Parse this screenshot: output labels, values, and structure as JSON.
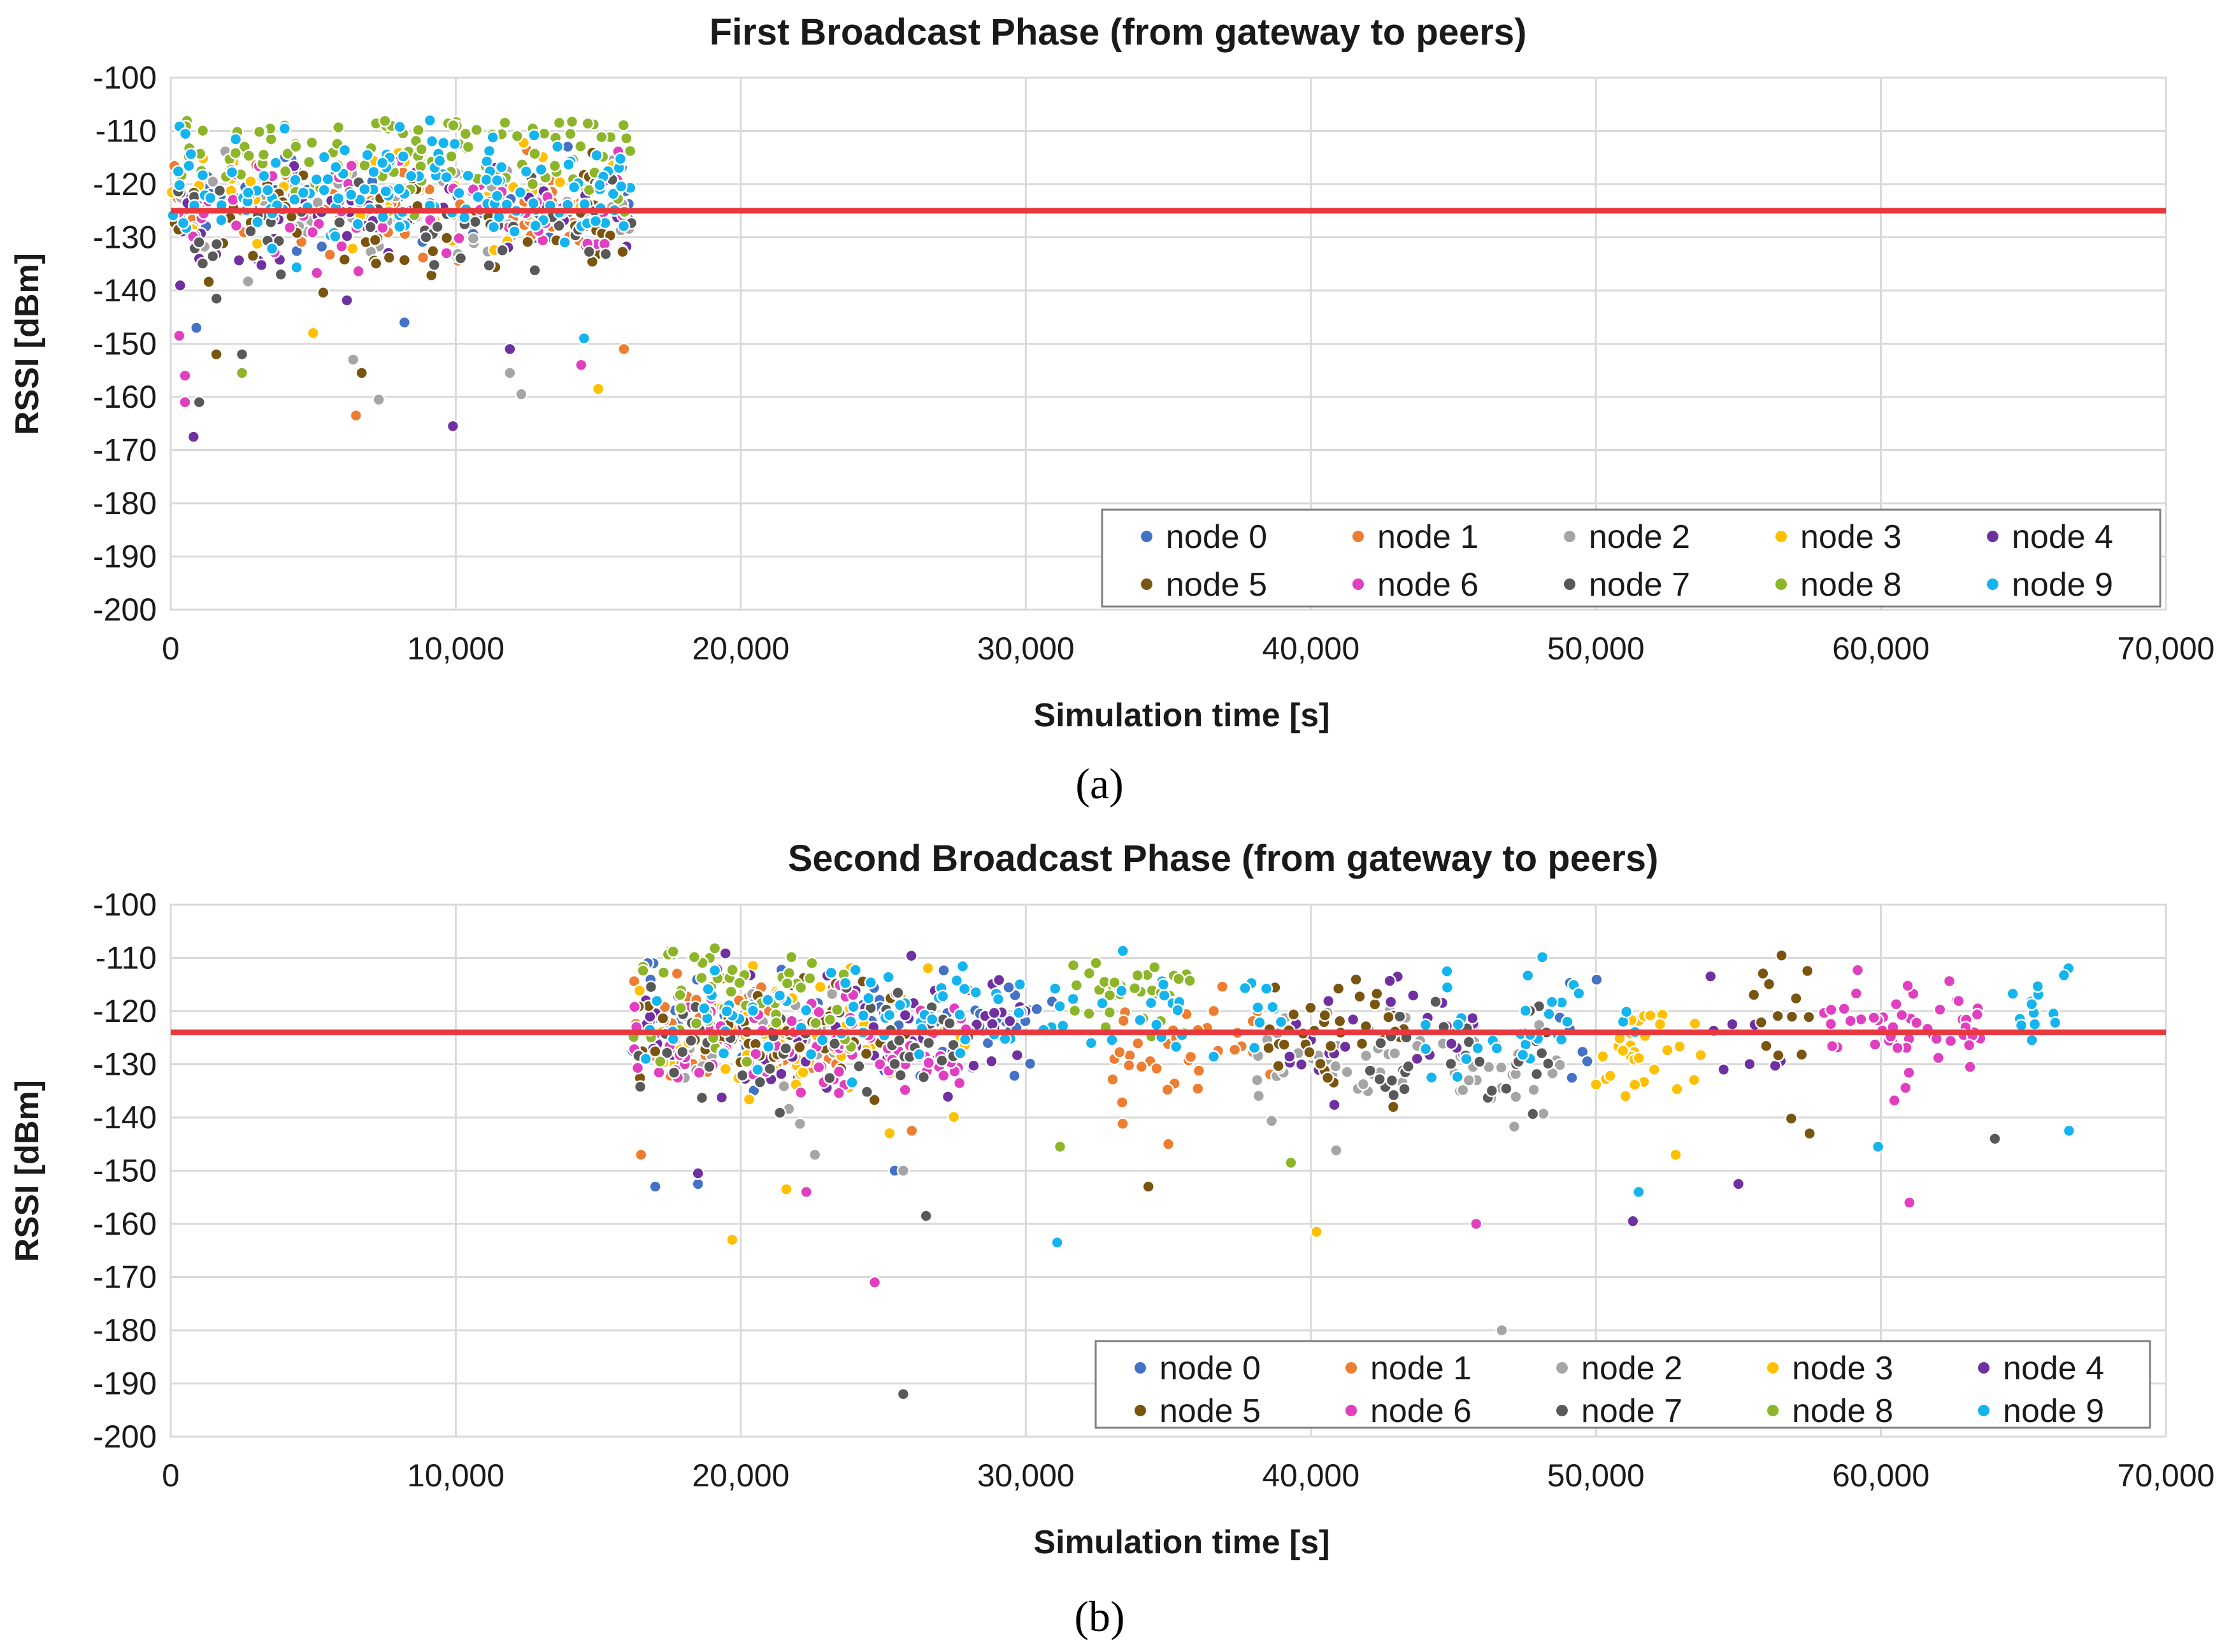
{
  "figure": {
    "captions": [
      "(a)",
      "(b)"
    ]
  },
  "chart_data": [
    {
      "type": "scatter",
      "title": "First Broadcast Phase (from gateway to peers)",
      "xlabel": "Simulation time [s]",
      "ylabel": "RSSI [dBm]",
      "xlim": [
        0,
        70000
      ],
      "ylim": [
        -200,
        -100
      ],
      "xticks": [
        "0",
        "10,000",
        "20,000",
        "30,000",
        "40,000",
        "50,000",
        "60,000",
        "70,000"
      ],
      "yticks": [
        "-100",
        "-110",
        "-120",
        "-130",
        "-140",
        "-150",
        "-160",
        "-170",
        "-180",
        "-190",
        "-200"
      ],
      "grid": true,
      "legend_position": "bottom-right",
      "reference_line": {
        "y": -125,
        "color": "#e8383d"
      },
      "time_window": [
        0,
        16200
      ],
      "series": [
        {
          "name": "node 0",
          "color": "#4472c4",
          "center": -124,
          "count": 60,
          "outliers": [
            [
              900,
              -147
            ],
            [
              8200,
              -146
            ]
          ]
        },
        {
          "name": "node 1",
          "color": "#ed7d31",
          "center": -124,
          "count": 60,
          "outliers": [
            [
              6500,
              -163.5
            ],
            [
              15900,
              -151
            ]
          ]
        },
        {
          "name": "node 2",
          "color": "#a5a5a5",
          "center": -125,
          "count": 70,
          "outliers": [
            [
              7300,
              -160.5
            ],
            [
              12300,
              -159.5
            ],
            [
              11900,
              -155.5
            ],
            [
              6400,
              -153
            ]
          ]
        },
        {
          "name": "node 3",
          "color": "#ffc000",
          "center": -123,
          "count": 60,
          "outliers": [
            [
              15000,
              -158.5
            ],
            [
              5000,
              -148
            ]
          ]
        },
        {
          "name": "node 4",
          "color": "#7030a0",
          "center": -126,
          "count": 60,
          "outliers": [
            [
              9900,
              -165.5
            ],
            [
              800,
              -167.5
            ],
            [
              11900,
              -151
            ]
          ]
        },
        {
          "name": "node 5",
          "color": "#7a5510",
          "center": -127,
          "count": 60,
          "outliers": [
            [
              6700,
              -155.5
            ],
            [
              1600,
              -152
            ]
          ]
        },
        {
          "name": "node 6",
          "color": "#e040c0",
          "center": -126,
          "count": 70,
          "outliers": [
            [
              500,
              -161
            ],
            [
              300,
              -148.5
            ],
            [
              500,
              -156
            ],
            [
              14400,
              -154
            ]
          ]
        },
        {
          "name": "node 7",
          "color": "#595959",
          "center": -127,
          "count": 60,
          "outliers": [
            [
              1000,
              -161
            ],
            [
              2500,
              -152
            ]
          ]
        },
        {
          "name": "node 8",
          "color": "#8db52a",
          "center": -114,
          "count": 110,
          "outliers": [
            [
              2500,
              -155.5
            ]
          ]
        },
        {
          "name": "node 9",
          "color": "#14b4ee",
          "center": -121,
          "count": 150,
          "outliers": [
            [
              14500,
              -149
            ]
          ]
        }
      ]
    },
    {
      "type": "scatter",
      "title": "Second Broadcast Phase (from gateway to peers)",
      "xlabel": "Simulation time [s]",
      "ylabel": "RSSI [dBm]",
      "xlim": [
        0,
        70000
      ],
      "ylim": [
        -200,
        -100
      ],
      "xticks": [
        "0",
        "10,000",
        "20,000",
        "30,000",
        "40,000",
        "50,000",
        "60,000",
        "70,000"
      ],
      "yticks": [
        "-100",
        "-110",
        "-120",
        "-130",
        "-140",
        "-150",
        "-160",
        "-170",
        "-180",
        "-190",
        "-200"
      ],
      "grid": true,
      "legend_position": "bottom-right",
      "reference_line": {
        "y": -124,
        "color": "#e8383d"
      },
      "time_window": [
        16200,
        66800
      ],
      "series": [
        {
          "name": "node 0",
          "color": "#4472c4",
          "segments": [
            [
              16200,
              31000,
              -122
            ],
            [
              48500,
              50500,
              -123
            ]
          ],
          "count": 90,
          "outliers": [
            [
              17000,
              -153
            ],
            [
              18500,
              -152.5
            ],
            [
              25400,
              -150
            ]
          ]
        },
        {
          "name": "node 1",
          "color": "#ed7d31",
          "segments": [
            [
              16200,
              24000,
              -124
            ],
            [
              33000,
              39000,
              -127
            ]
          ],
          "count": 90,
          "outliers": [
            [
              16500,
              -147
            ],
            [
              35000,
              -145
            ],
            [
              26000,
              -142.5
            ]
          ]
        },
        {
          "name": "node 2",
          "color": "#a5a5a5",
          "segments": [
            [
              16200,
              24000,
              -125
            ],
            [
              38000,
              49000,
              -130
            ]
          ],
          "count": 110,
          "outliers": [
            [
              46700,
              -180
            ],
            [
              25700,
              -150
            ],
            [
              22600,
              -147
            ]
          ]
        },
        {
          "name": "node 3",
          "color": "#ffc000",
          "segments": [
            [
              16200,
              28000,
              -125
            ],
            [
              49500,
              54000,
              -128
            ]
          ],
          "count": 110,
          "outliers": [
            [
              19700,
              -163
            ],
            [
              40200,
              -161.5
            ],
            [
              21600,
              -153.5
            ],
            [
              52800,
              -147
            ]
          ]
        },
        {
          "name": "node 4",
          "color": "#7030a0",
          "segments": [
            [
              16200,
              30000,
              -124
            ],
            [
              39000,
              46000,
              -124
            ],
            [
              54000,
              56500,
              -123
            ]
          ],
          "count": 110,
          "outliers": [
            [
              51300,
              -159.5
            ],
            [
              55000,
              -152.5
            ],
            [
              18500,
              -150.5
            ]
          ]
        },
        {
          "name": "node 5",
          "color": "#7a5510",
          "segments": [
            [
              16200,
              26000,
              -124
            ],
            [
              38000,
              44000,
              -125
            ],
            [
              55500,
              57500,
              -122
            ]
          ],
          "count": 100,
          "outliers": [
            [
              34300,
              -153
            ],
            [
              57500,
              -143
            ]
          ]
        },
        {
          "name": "node 6",
          "color": "#e040c0",
          "segments": [
            [
              16200,
              28000,
              -126
            ],
            [
              58000,
              63500,
              -124
            ]
          ],
          "count": 150,
          "outliers": [
            [
              24700,
              -171
            ],
            [
              45800,
              -160
            ],
            [
              61000,
              -156
            ],
            [
              22300,
              -154
            ]
          ]
        },
        {
          "name": "node 7",
          "color": "#595959",
          "segments": [
            [
              16200,
              28000,
              -126
            ],
            [
              42000,
              48500,
              -128
            ]
          ],
          "count": 90,
          "outliers": [
            [
              25700,
              -192
            ],
            [
              26500,
              -158.5
            ],
            [
              64000,
              -144
            ]
          ]
        },
        {
          "name": "node 8",
          "color": "#8db52a",
          "segments": [
            [
              16200,
              24000,
              -117
            ],
            [
              31500,
              36000,
              -117
            ]
          ],
          "count": 90,
          "outliers": [
            [
              39300,
              -148.5
            ],
            [
              31200,
              -145.5
            ]
          ]
        },
        {
          "name": "node 9",
          "color": "#14b4ee",
          "segments": [
            [
              16200,
              39000,
              -121
            ],
            [
              44000,
              51500,
              -122
            ],
            [
              64500,
              66800,
              -121
            ]
          ],
          "count": 150,
          "outliers": [
            [
              31100,
              -163.5
            ],
            [
              51500,
              -154
            ],
            [
              59900,
              -145.5
            ],
            [
              66600,
              -142.5
            ]
          ]
        }
      ]
    }
  ]
}
